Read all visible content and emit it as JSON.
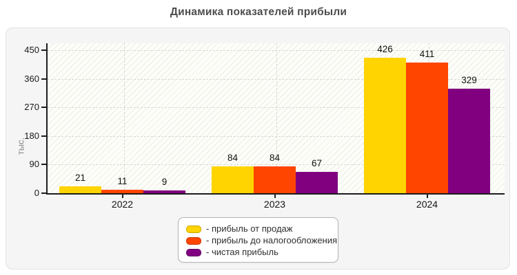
{
  "header": {
    "title": "Динамика показателей прибыли"
  },
  "chart_data": {
    "type": "bar",
    "title": "Динамика показателей прибыли",
    "xlabel": "",
    "ylabel": "тыс.",
    "categories": [
      "2022",
      "2023",
      "2024"
    ],
    "series": [
      {
        "name": "прибыль от продаж",
        "color": "#ffd400",
        "values": [
          21,
          84,
          426
        ]
      },
      {
        "name": "прибыль до налогообложения",
        "color": "#ff4500",
        "values": [
          11,
          84,
          411
        ]
      },
      {
        "name": "чистая прибыль",
        "color": "#800080",
        "values": [
          9,
          67,
          329
        ]
      }
    ],
    "legend_labels": [
      "- прибыль от продаж",
      "- прибыль до налогообложения",
      "- чистая прибыль"
    ],
    "legend_position": "bottom-center",
    "yticks": [
      0,
      90,
      180,
      270,
      360,
      450
    ],
    "ylim": [
      0,
      450
    ],
    "grid": true,
    "gridline_style": "dashed",
    "value_labels": true,
    "plot_background": "hatched"
  },
  "colors": {
    "title_text": "#4d4d4d",
    "axis_line": "#1c1c1c",
    "tick_text": "#191919",
    "gridline": "#d7d7d3",
    "ylabel_text": "#8a8a8a",
    "panel_background": "#f5f5f5",
    "panel_border": "#e2e2e2",
    "legend_border": "#b3b3b3",
    "legend_background": "#ffffff"
  }
}
